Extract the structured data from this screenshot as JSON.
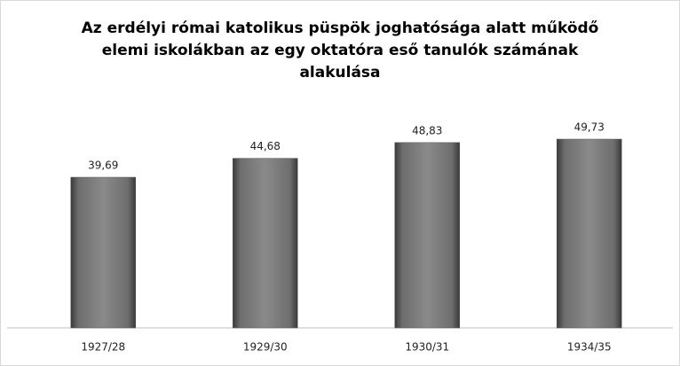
{
  "chart_data": {
    "type": "bar",
    "title": "Az erdélyi római katolikus püspök joghatósága alatt működő elemi iskolákban az egy oktatóra eső tanulók számának alakulása",
    "categories": [
      "1927/28",
      "1929/30",
      "1930/31",
      "1934/35"
    ],
    "values": [
      39.69,
      44.68,
      48.83,
      49.73
    ],
    "value_labels": [
      "39,69",
      "44,68",
      "48,83",
      "49,73"
    ],
    "color": "#7f7f7f"
  }
}
